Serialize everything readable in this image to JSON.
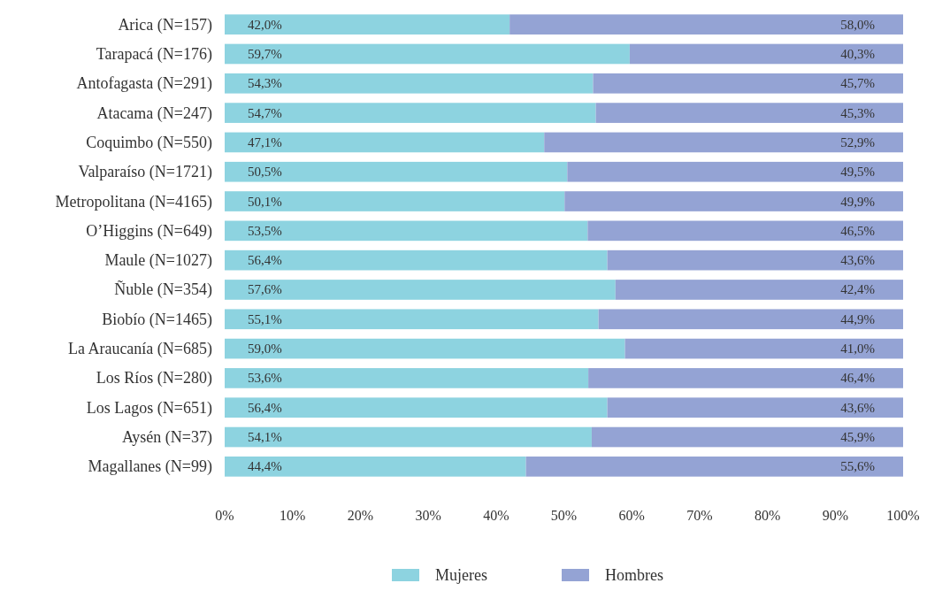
{
  "chart_data": {
    "type": "bar",
    "orientation": "horizontal",
    "stacked": true,
    "legend": "bottom",
    "grid": false,
    "categories": [
      "Arica (N=157)",
      "Tarapacá (N=176)",
      "Antofagasta (N=291)",
      "Atacama (N=247)",
      "Coquimbo (N=550)",
      "Valparaíso (N=1721)",
      "Metropolitana (N=4165)",
      "O’Higgins (N=649)",
      "Maule (N=1027)",
      "Ñuble (N=354)",
      "Biobío (N=1465)",
      "La Araucanía (N=685)",
      "Los Ríos (N=280)",
      "Los Lagos (N=651)",
      "Aysén (N=37)",
      "Magallanes (N=99)"
    ],
    "xlim": [
      0,
      100
    ],
    "xticks": [
      {
        "value": 0,
        "label": "0%"
      },
      {
        "value": 10,
        "label": "10%"
      },
      {
        "value": 20,
        "label": "20%"
      },
      {
        "value": 30,
        "label": "30%"
      },
      {
        "value": 40,
        "label": "40%"
      },
      {
        "value": 50,
        "label": "50%"
      },
      {
        "value": 60,
        "label": "60%"
      },
      {
        "value": 70,
        "label": "70%"
      },
      {
        "value": 80,
        "label": "80%"
      },
      {
        "value": 90,
        "label": "90%"
      },
      {
        "value": 100,
        "label": "100%"
      }
    ],
    "series": [
      {
        "name": "Mujeres",
        "color": "#8dd3e0",
        "values": [
          42.0,
          59.7,
          54.3,
          54.7,
          47.1,
          50.5,
          50.1,
          53.5,
          56.4,
          57.6,
          55.1,
          59.0,
          53.6,
          56.4,
          54.1,
          44.4
        ],
        "value_labels": [
          "42,0%",
          "59,7%",
          "54,3%",
          "54,7%",
          "47,1%",
          "50,5%",
          "50,1%",
          "53,5%",
          "56,4%",
          "57,6%",
          "55,1%",
          "59,0%",
          "53,6%",
          "56,4%",
          "54,1%",
          "44,4%"
        ]
      },
      {
        "name": "Hombres",
        "color": "#94a3d4",
        "values": [
          58.0,
          40.3,
          45.7,
          45.3,
          52.9,
          49.5,
          49.9,
          46.5,
          43.6,
          42.4,
          44.9,
          41.0,
          46.4,
          43.6,
          45.9,
          55.6
        ],
        "value_labels": [
          "58,0%",
          "40,3%",
          "45,7%",
          "45,3%",
          "52,9%",
          "49,5%",
          "49,9%",
          "46,5%",
          "43,6%",
          "42,4%",
          "44,9%",
          "41,0%",
          "46,4%",
          "43,6%",
          "45,9%",
          "55,6%"
        ]
      }
    ]
  }
}
